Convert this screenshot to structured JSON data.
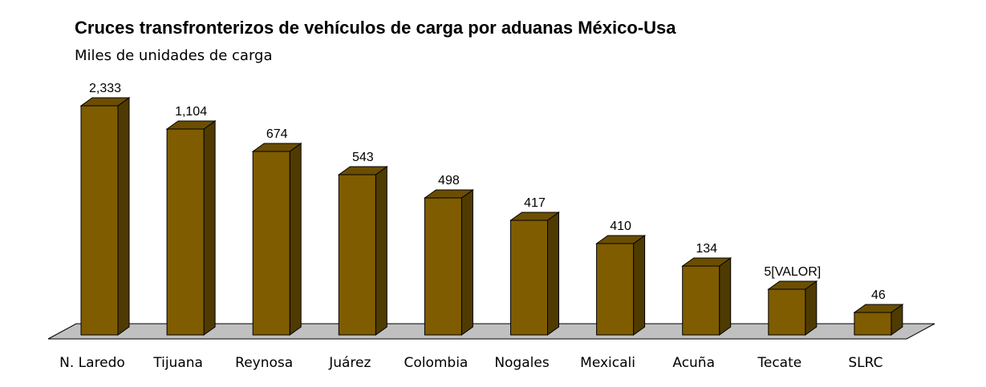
{
  "chart_data": {
    "type": "bar",
    "title": "Cruces transfronterizos de vehículos de carga por aduanas México-Usa",
    "subtitle": "Miles de unidades de carga",
    "xlabel": "",
    "ylabel": "",
    "style": "3d-column",
    "grid": false,
    "legend": "none",
    "categories": [
      "N. Laredo",
      "Tijuana",
      "Reynosa",
      "Juárez",
      "Colombia",
      "Nogales",
      "Mexicali",
      "Acuña",
      "Tecate",
      "SLRC"
    ],
    "values": [
      2333,
      1104,
      674,
      543,
      498,
      417,
      410,
      134,
      5,
      46
    ],
    "data_labels": [
      "2,333",
      "1,104",
      "674",
      "543",
      "498",
      "417",
      "410",
      "134",
      "5[VALOR]",
      "46"
    ],
    "colors": {
      "bar_front": "#7f5c00",
      "bar_top": "#6b4e00",
      "bar_side": "#4f3b00",
      "floor": "#c0c0c0",
      "outline": "#000000"
    }
  }
}
